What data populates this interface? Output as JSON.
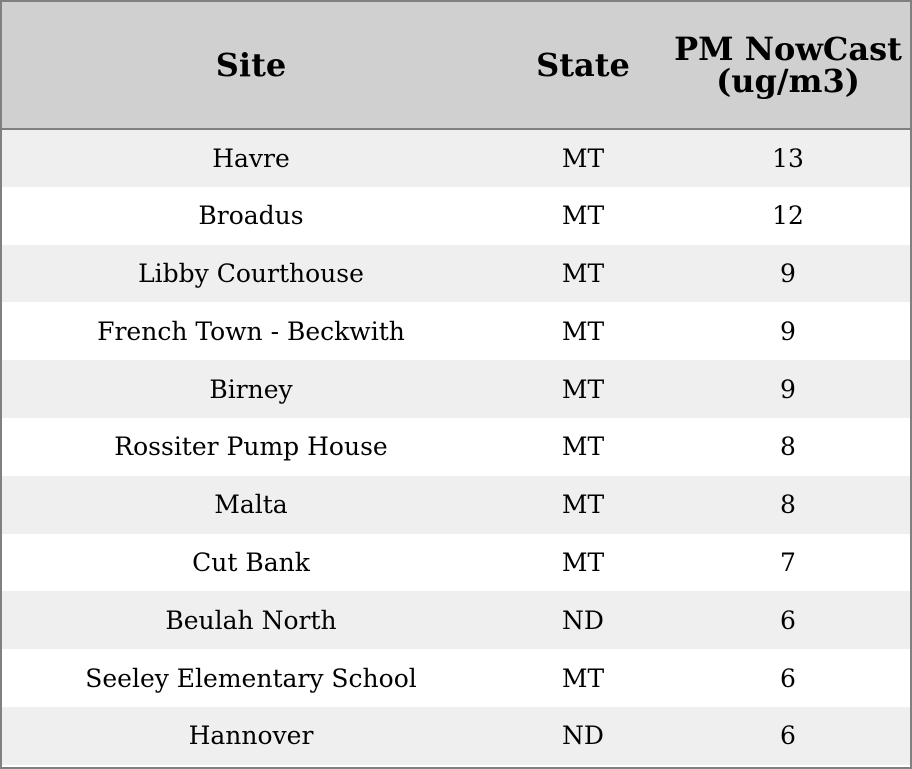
{
  "chart_data": {
    "type": "table",
    "columns": [
      "Site",
      "State",
      "PM NowCast (ug/m3)"
    ],
    "rows": [
      [
        "Havre",
        "MT",
        "13"
      ],
      [
        "Broadus",
        "MT",
        "12"
      ],
      [
        "Libby Courthouse",
        "MT",
        "9"
      ],
      [
        "French Town - Beckwith",
        "MT",
        "9"
      ],
      [
        "Birney",
        "MT",
        "9"
      ],
      [
        "Rossiter Pump House",
        "MT",
        "8"
      ],
      [
        "Malta",
        "MT",
        "8"
      ],
      [
        "Cut Bank",
        "MT",
        "7"
      ],
      [
        "Beulah North",
        "ND",
        "6"
      ],
      [
        "Seeley Elementary School",
        "MT",
        "6"
      ],
      [
        "Hannover",
        "ND",
        "6"
      ]
    ],
    "colors": {
      "header_bg": "#d0d0d0",
      "odd_row_bg": "#efefef",
      "even_row_bg": "#ffffff",
      "border": "#808080"
    }
  }
}
